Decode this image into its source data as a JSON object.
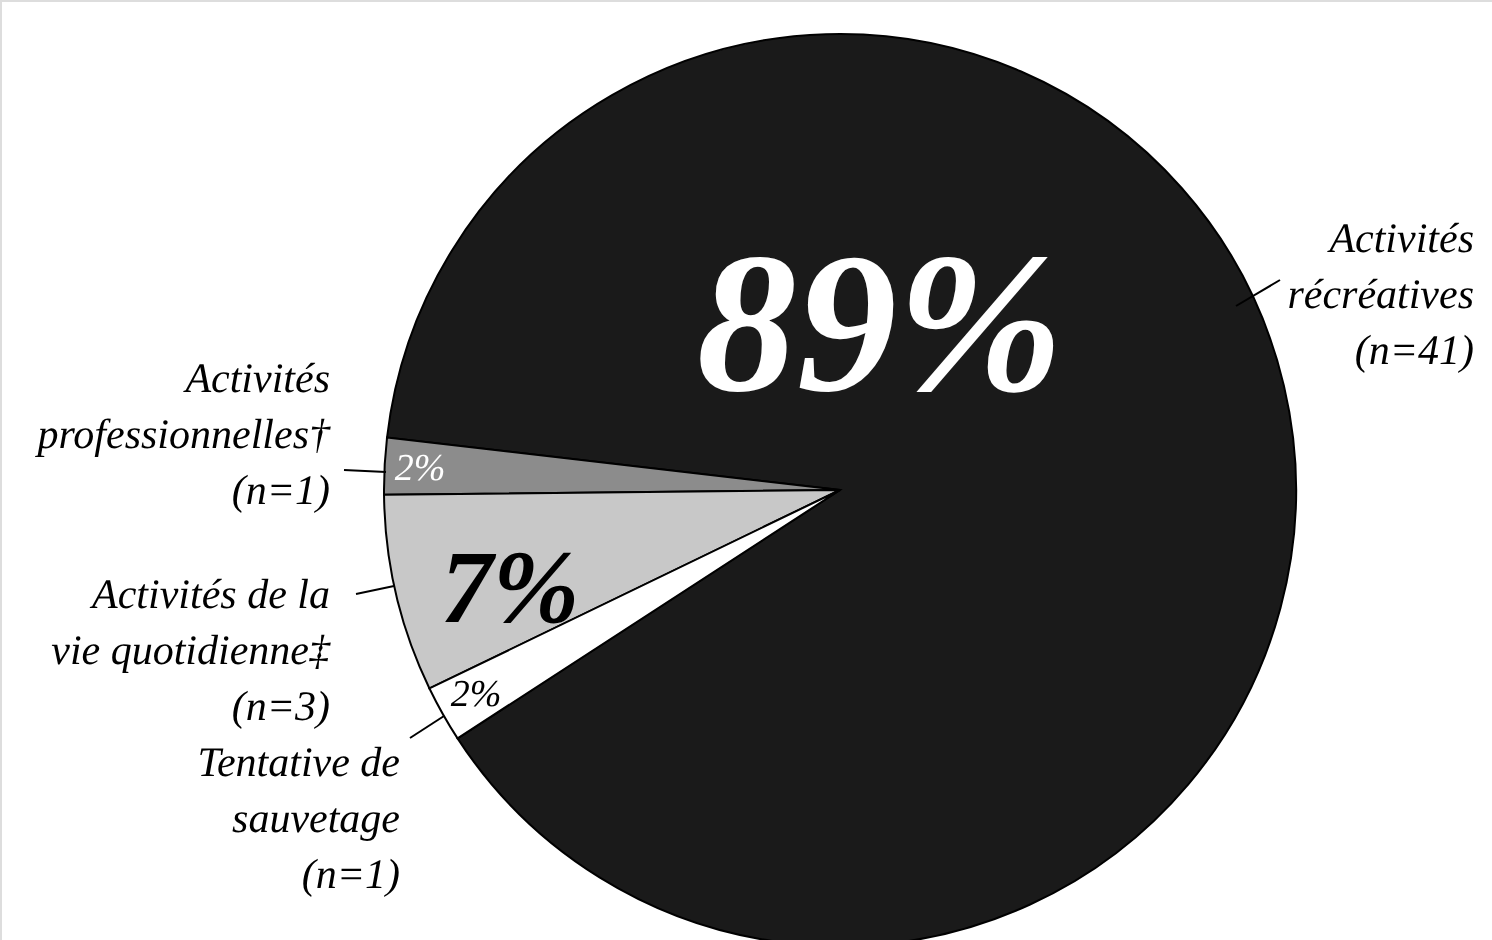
{
  "chart_data": {
    "type": "pie",
    "categories": [
      "Activités\nrécréatives\n(n=41)",
      "Activités\nprofessionnelles†\n(n=1)",
      "Activités de la\nvie quotidienne‡\n(n=3)",
      "Tentative de\nsauvetage\n(n=1)"
    ],
    "values": [
      89,
      2,
      7,
      2
    ],
    "colors": [
      "#1a1a1a",
      "#8c8c8c",
      "#c8c8c8",
      "#ffffff"
    ],
    "value_labels": [
      "89%",
      "2%",
      "7%",
      "2%"
    ]
  }
}
